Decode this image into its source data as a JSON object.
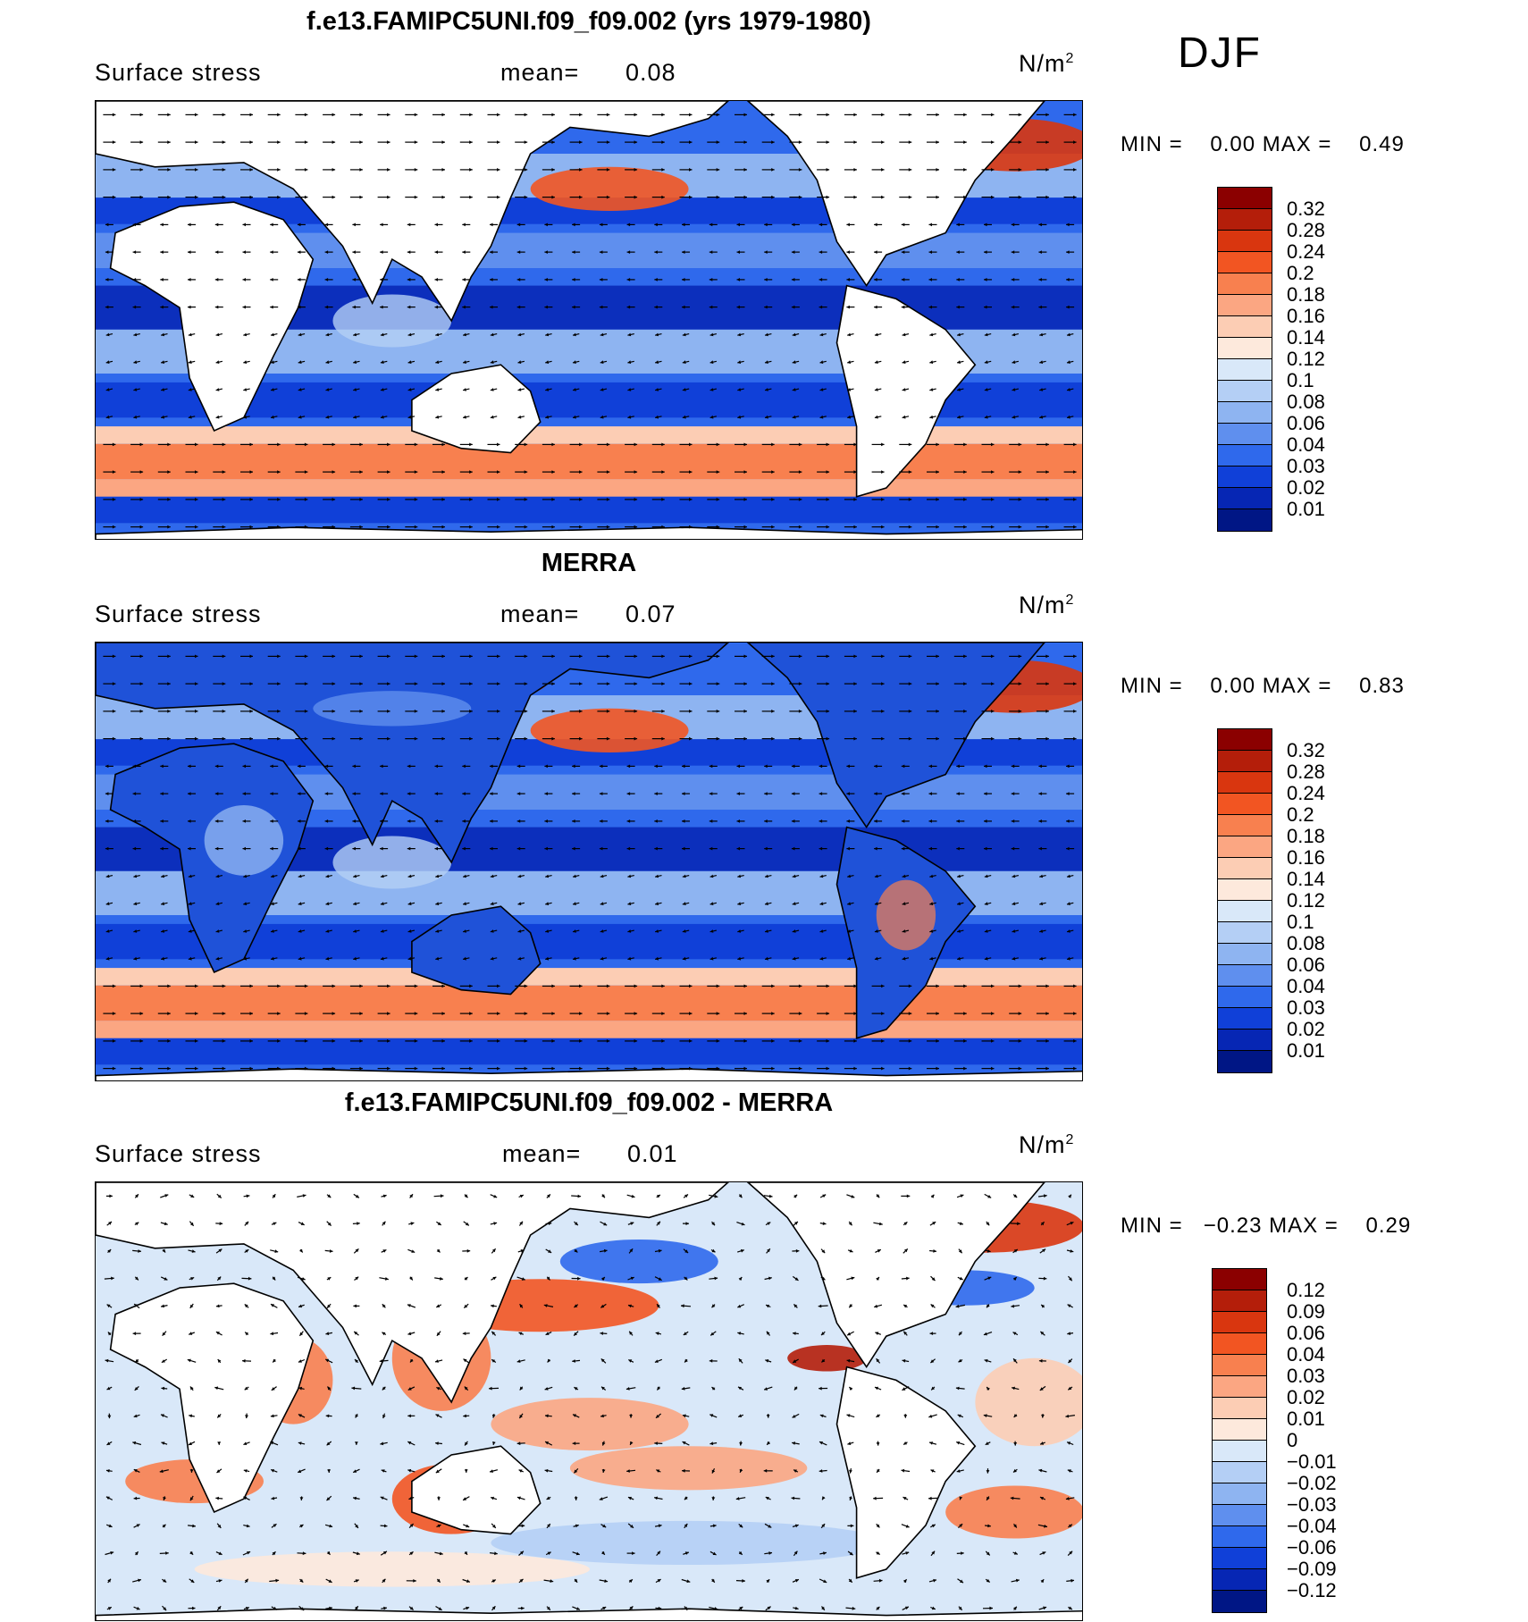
{
  "season": "DJF",
  "panels": [
    {
      "title": "f.e13.FAMIPC5UNI.f09_f09.002 (yrs 1979-1980)",
      "variable": "Surface stress",
      "mean_label": "mean=",
      "mean_value": "0.08",
      "units": "N/m",
      "units_sup": "2",
      "min_label": "MIN =",
      "min_value": "0.00",
      "max_label": "MAX =",
      "max_value": "0.49",
      "colorbar": {
        "labels": [
          "0.32",
          "0.28",
          "0.24",
          "0.2",
          "0.18",
          "0.16",
          "0.14",
          "0.12",
          "0.1",
          "0.08",
          "0.06",
          "0.04",
          "0.03",
          "0.02",
          "0.01"
        ],
        "colors": [
          "#8b0000",
          "#b41e0a",
          "#d9360f",
          "#f25522",
          "#f8804f",
          "#fba682",
          "#fccdb4",
          "#fde9dc",
          "#d9e8f9",
          "#b4cff5",
          "#8eb4f1",
          "#5f8fee",
          "#2f69ec",
          "#1040d8",
          "#0626b4",
          "#001685"
        ]
      }
    },
    {
      "title": "MERRA",
      "variable": "Surface stress",
      "mean_label": "mean=",
      "mean_value": "0.07",
      "units": "N/m",
      "units_sup": "2",
      "min_label": "MIN =",
      "min_value": "0.00",
      "max_label": "MAX =",
      "max_value": "0.83",
      "colorbar": {
        "labels": [
          "0.32",
          "0.28",
          "0.24",
          "0.2",
          "0.18",
          "0.16",
          "0.14",
          "0.12",
          "0.1",
          "0.08",
          "0.06",
          "0.04",
          "0.03",
          "0.02",
          "0.01"
        ],
        "colors": [
          "#8b0000",
          "#b41e0a",
          "#d9360f",
          "#f25522",
          "#f8804f",
          "#fba682",
          "#fccdb4",
          "#fde9dc",
          "#d9e8f9",
          "#b4cff5",
          "#8eb4f1",
          "#5f8fee",
          "#2f69ec",
          "#1040d8",
          "#0626b4",
          "#001685"
        ]
      }
    },
    {
      "title": "f.e13.FAMIPC5UNI.f09_f09.002 - MERRA",
      "variable": "Surface stress",
      "mean_label": "mean=",
      "mean_value": "0.01",
      "units": "N/m",
      "units_sup": "2",
      "min_label": "MIN =",
      "min_value": "−0.23",
      "max_label": "MAX =",
      "max_value": "0.29",
      "colorbar": {
        "labels": [
          "0.12",
          "0.09",
          "0.06",
          "0.04",
          "0.03",
          "0.02",
          "0.01",
          "0",
          "−0.01",
          "−0.02",
          "−0.03",
          "−0.04",
          "−0.06",
          "−0.09",
          "−0.12"
        ],
        "colors": [
          "#8b0000",
          "#b41e0a",
          "#d9360f",
          "#f25522",
          "#f8804f",
          "#fba682",
          "#fccdb4",
          "#fde9dc",
          "#d9e8f9",
          "#b4cff5",
          "#8eb4f1",
          "#5f8fee",
          "#2f69ec",
          "#1040d8",
          "#0626b4",
          "#001685"
        ]
      }
    }
  ]
}
